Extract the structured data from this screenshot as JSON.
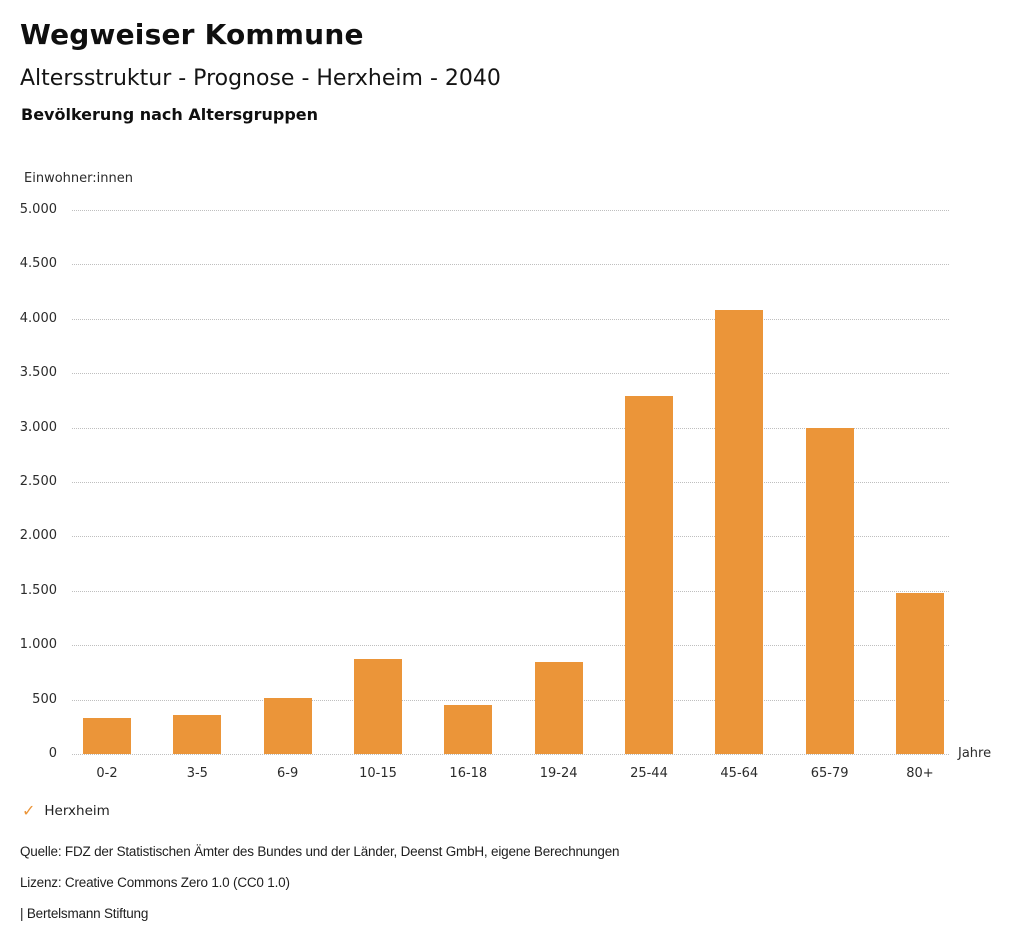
{
  "header": {
    "title": "Wegweiser Kommune",
    "subtitle": "Altersstruktur - Prognose - Herxheim - 2040",
    "section_title": "Bevölkerung nach Altersgruppen"
  },
  "chart_data": {
    "type": "bar",
    "title": "Bevölkerung nach Altersgruppen",
    "series_name": "Herxheim",
    "xlabel": "Jahre",
    "ylabel": "Einwohner:innen",
    "categories": [
      "0-2",
      "3-5",
      "6-9",
      "10-15",
      "16-18",
      "19-24",
      "25-44",
      "45-64",
      "65-79",
      "80+"
    ],
    "values": [
      330,
      360,
      515,
      875,
      450,
      845,
      3290,
      4080,
      3000,
      1480
    ],
    "ylim": [
      0,
      5000
    ],
    "ytick_values": [
      0,
      500,
      1000,
      1500,
      2000,
      2500,
      3000,
      3500,
      4000,
      4500,
      5000
    ],
    "ytick_labels": [
      "0",
      "500",
      "1.000",
      "1.500",
      "2.000",
      "2.500",
      "3.000",
      "3.500",
      "4.000",
      "4.500",
      "5.000"
    ],
    "grid": "horizontal-dotted",
    "legend_position": "bottom-left",
    "bar_color": "#EB9539",
    "grid_color": "#BFBFBF",
    "check_icon_color": "#EB9539"
  },
  "footer": {
    "source": "Quelle: FDZ der Statistischen Ämter des Bundes und der Länder, Deenst GmbH, eigene Berechnungen",
    "license": "Lizenz: Creative Commons Zero 1.0 (CC0 1.0)",
    "branding": "| Bertelsmann Stiftung"
  }
}
